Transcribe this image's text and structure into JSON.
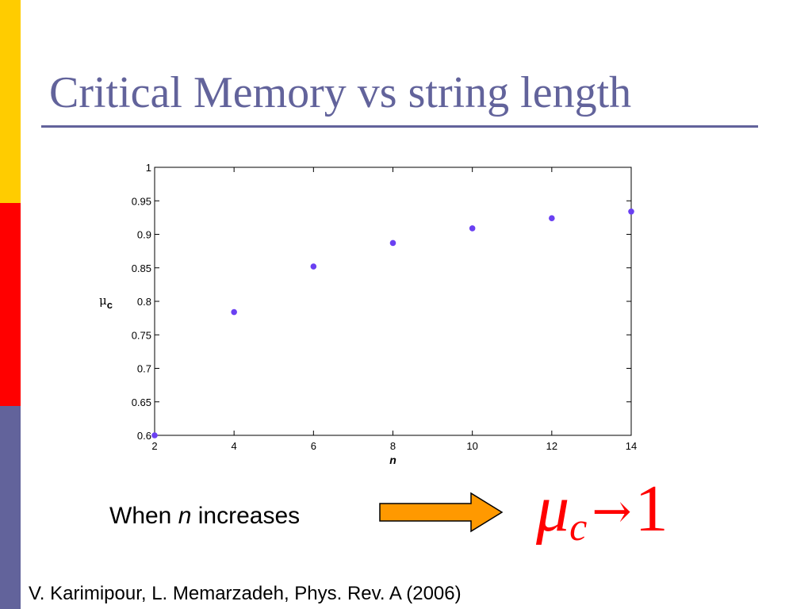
{
  "colors": {
    "accent_yellow": "#ffcc00",
    "accent_red": "#ff0000",
    "accent_blue": "#62639b",
    "marker": "#6a40f2",
    "arrow_fill": "#ff9900"
  },
  "title": "Critical Memory vs string length",
  "caption": {
    "before": "When ",
    "variable": "n",
    "after": " increases"
  },
  "formula": {
    "symbol": "μ",
    "subscript": "c",
    "arrow": "→",
    "limit": "1"
  },
  "citation": "V. Karimipour, L. Memarzadeh, Phys. Rev. A (2006)",
  "chart_data": {
    "type": "scatter",
    "x": [
      2,
      4,
      6,
      8,
      10,
      12,
      14
    ],
    "y": [
      0.6,
      0.784,
      0.852,
      0.887,
      0.909,
      0.924,
      0.934
    ],
    "xlabel": "n",
    "ylabel_symbol": "μ",
    "ylabel_subscript": "c",
    "xlim": [
      2,
      14
    ],
    "ylim": [
      0.6,
      1
    ],
    "xticks": [
      "2",
      "4",
      "6",
      "8",
      "10",
      "12",
      "14"
    ],
    "yticks": [
      "0.6",
      "0.65",
      "0.7",
      "0.75",
      "0.8",
      "0.85",
      "0.9",
      "0.95",
      "1"
    ],
    "grid": false,
    "marker_color": "#6a40f2"
  }
}
